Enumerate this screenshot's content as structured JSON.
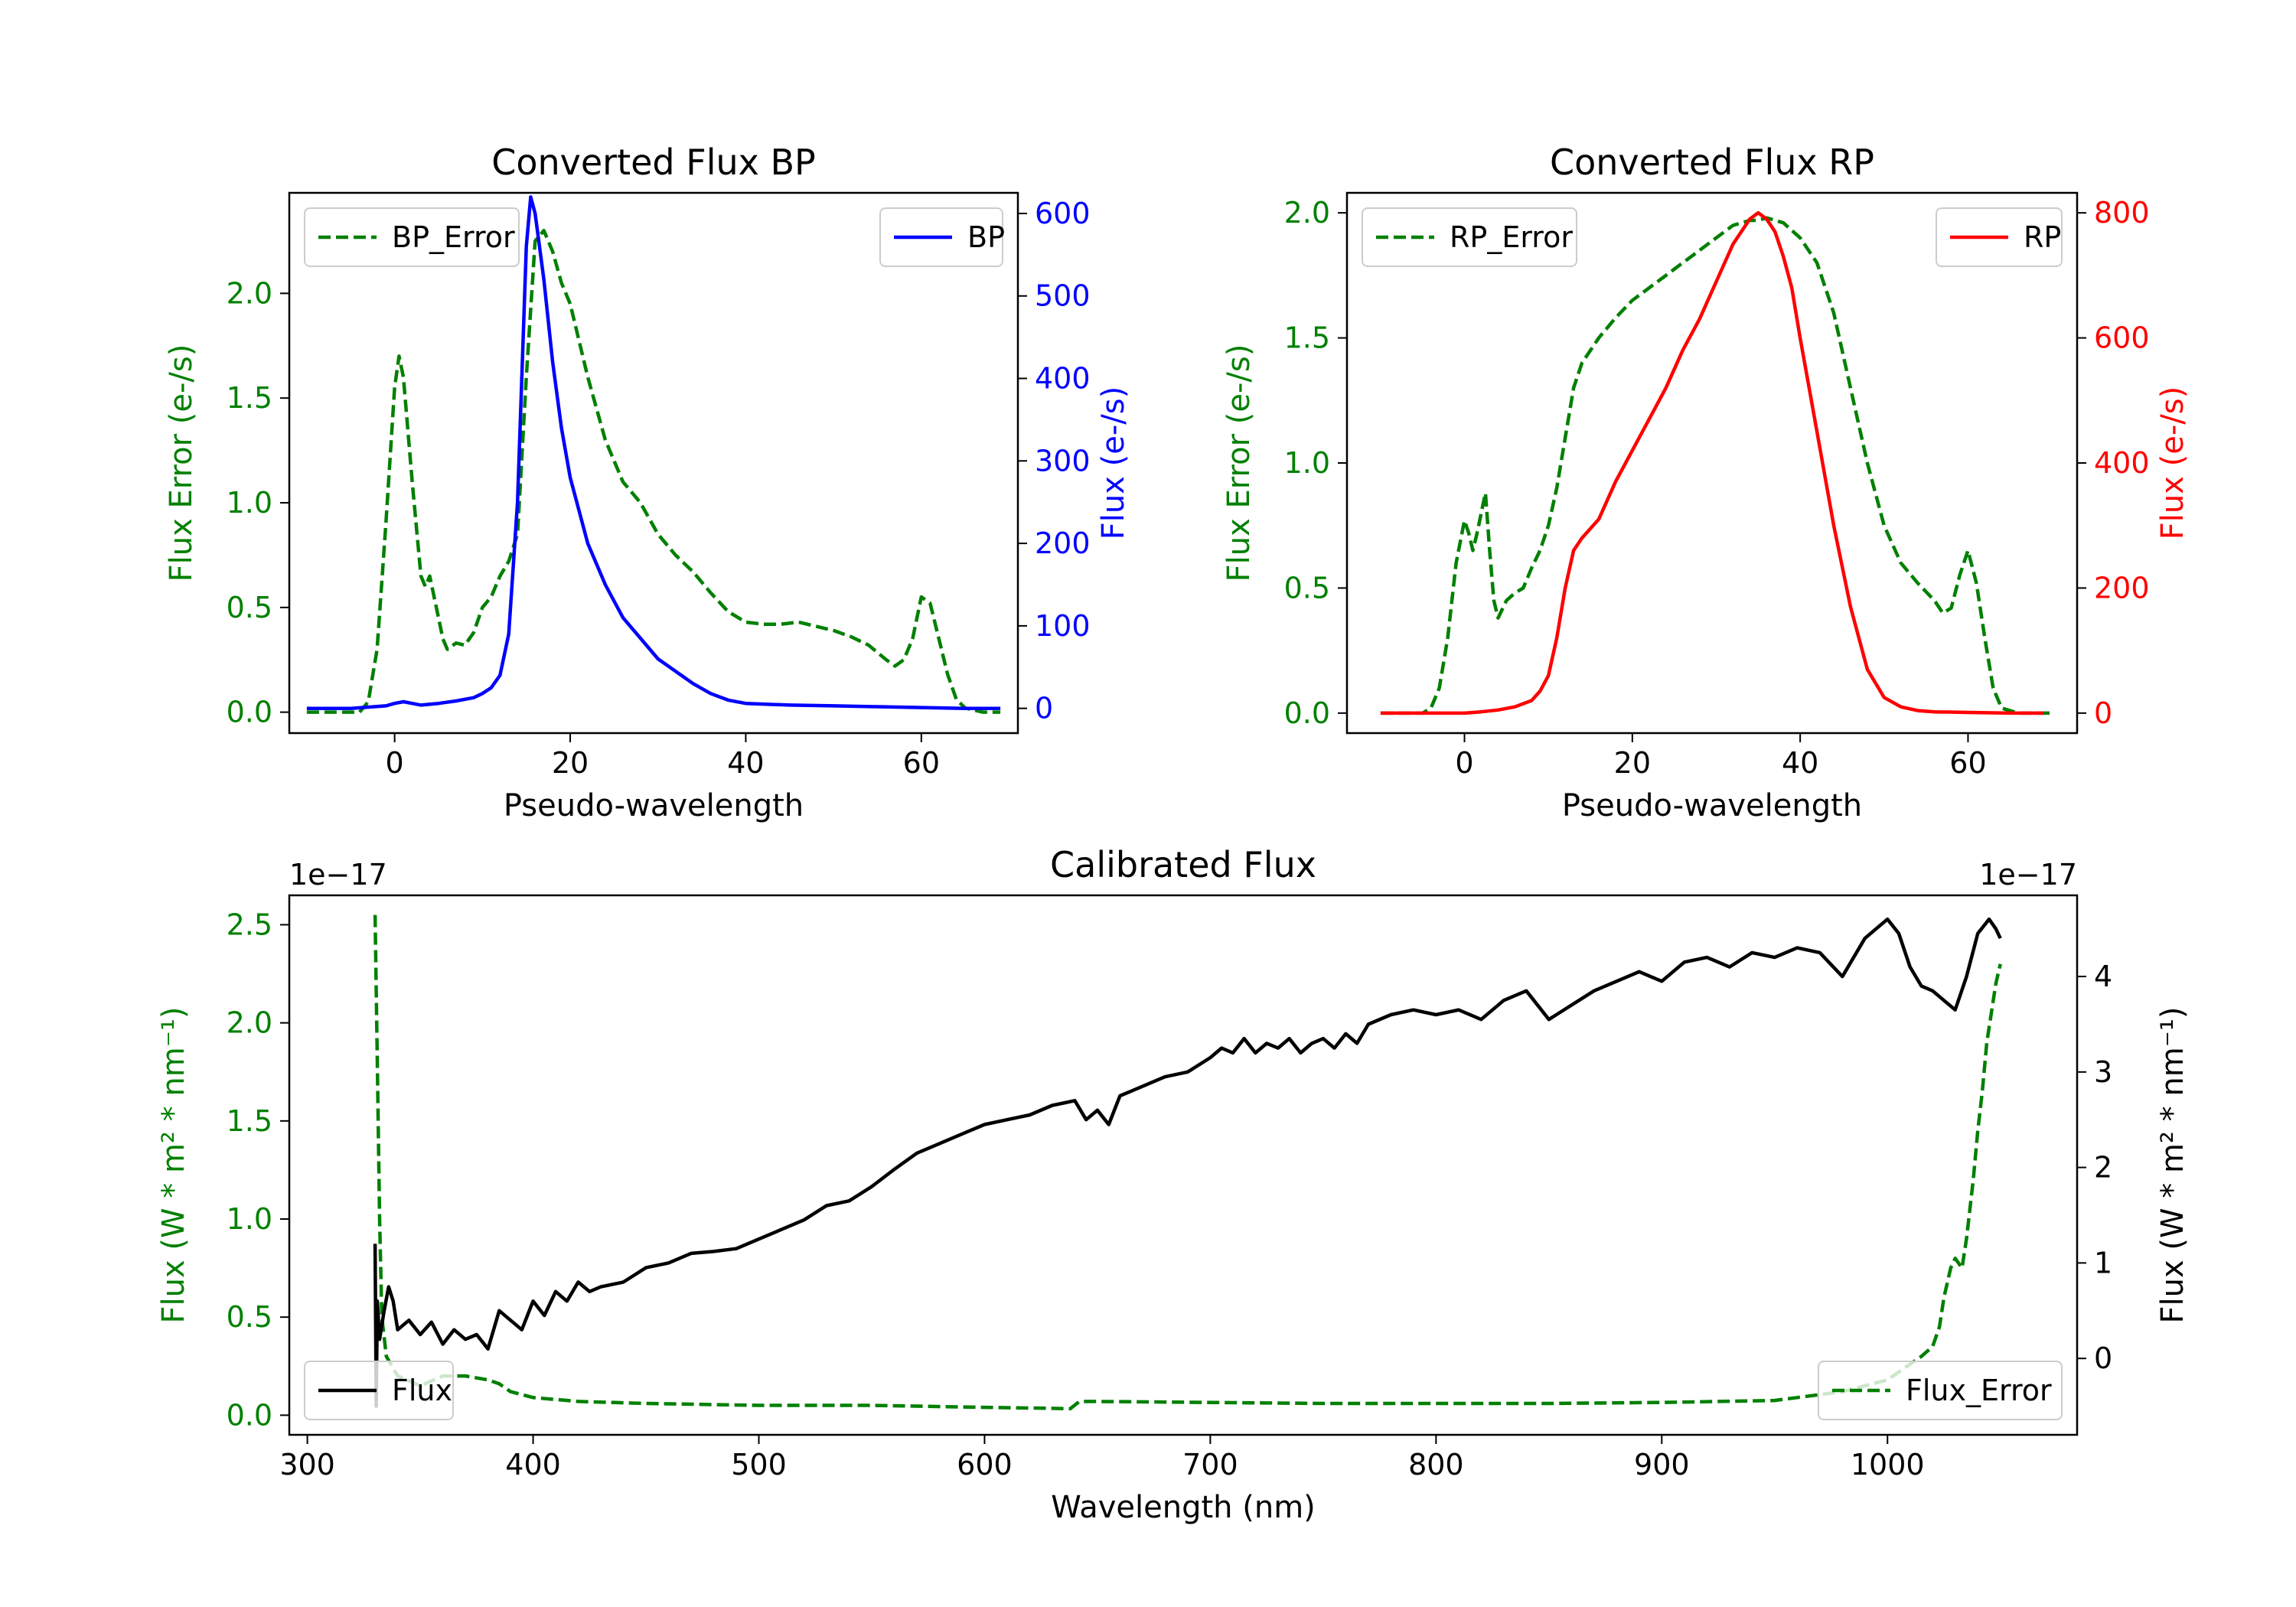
{
  "chart_data": [
    {
      "id": "bp",
      "type": "line",
      "title": "Converted Flux BP",
      "xlabel": "Pseudo-wavelength",
      "ylabel_left": "Flux Error (e-/s)",
      "ylabel_right": "Flux (e-/s)",
      "xlim": [
        -12,
        71
      ],
      "ylim_left": [
        -0.1,
        2.48
      ],
      "ylim_right": [
        -30,
        625
      ],
      "xticks": [
        0,
        20,
        40,
        60
      ],
      "yticks_left": [
        0.0,
        0.5,
        1.0,
        1.5,
        2.0
      ],
      "yticks_left_labels": [
        "0.0",
        "0.5",
        "1.0",
        "1.5",
        "2.0"
      ],
      "yticks_right": [
        0,
        100,
        200,
        300,
        400,
        500,
        600
      ],
      "left_color": "#008000",
      "right_color": "#0000ff",
      "legend_left": "BP_Error",
      "legend_right": "BP",
      "series_error": {
        "name": "BP_Error",
        "axis": "left",
        "style": "dashed",
        "color": "#008000",
        "x": [
          -10,
          -4,
          -3,
          -2,
          -1,
          0,
          0.5,
          1,
          2,
          3,
          3.5,
          4,
          5,
          5.5,
          6,
          7,
          8,
          9,
          10,
          11,
          12,
          13,
          14,
          15,
          16,
          17,
          18,
          19,
          20,
          22,
          24,
          26,
          28,
          30,
          32,
          34,
          36,
          38,
          40,
          42,
          44,
          46,
          48,
          50,
          52,
          54,
          56,
          57,
          58,
          59,
          60,
          61,
          62,
          63,
          64,
          65,
          67,
          69
        ],
        "y": [
          0.0,
          0.0,
          0.05,
          0.3,
          0.9,
          1.55,
          1.7,
          1.6,
          1.1,
          0.65,
          0.6,
          0.65,
          0.45,
          0.35,
          0.3,
          0.33,
          0.32,
          0.38,
          0.5,
          0.55,
          0.65,
          0.72,
          0.85,
          1.6,
          2.25,
          2.3,
          2.2,
          2.05,
          1.95,
          1.6,
          1.3,
          1.1,
          1.0,
          0.85,
          0.75,
          0.67,
          0.57,
          0.48,
          0.43,
          0.42,
          0.42,
          0.43,
          0.41,
          0.39,
          0.36,
          0.32,
          0.25,
          0.22,
          0.25,
          0.35,
          0.55,
          0.52,
          0.35,
          0.18,
          0.06,
          0.02,
          0.0,
          0.0
        ]
      },
      "series_flux": {
        "name": "BP",
        "axis": "right",
        "style": "solid",
        "color": "#0000ff",
        "x": [
          -10,
          -5,
          -1,
          0,
          1,
          2,
          3,
          5,
          7,
          9,
          10,
          11,
          12,
          13,
          14,
          15,
          15.5,
          16,
          17,
          18,
          19,
          20,
          22,
          24,
          26,
          28,
          30,
          32,
          34,
          36,
          38,
          40,
          45,
          50,
          55,
          60,
          65,
          69
        ],
        "y": [
          0,
          0,
          3,
          6,
          8,
          6,
          4,
          6,
          9,
          13,
          18,
          25,
          40,
          90,
          250,
          560,
          620,
          600,
          520,
          420,
          340,
          280,
          200,
          150,
          110,
          85,
          60,
          45,
          30,
          18,
          10,
          6,
          4,
          3,
          2,
          1,
          0,
          0
        ]
      }
    },
    {
      "id": "rp",
      "type": "line",
      "title": "Converted Flux RP",
      "xlabel": "Pseudo-wavelength",
      "ylabel_left": "Flux Error (e-/s)",
      "ylabel_right": "Flux (e-/s)",
      "xlim": [
        -14,
        73
      ],
      "ylim_left": [
        -0.08,
        2.08
      ],
      "ylim_right": [
        -32,
        832
      ],
      "xticks": [
        0,
        20,
        40,
        60
      ],
      "yticks_left": [
        0.0,
        0.5,
        1.0,
        1.5,
        2.0
      ],
      "yticks_left_labels": [
        "0.0",
        "0.5",
        "1.0",
        "1.5",
        "2.0"
      ],
      "yticks_right": [
        0,
        200,
        400,
        600,
        800
      ],
      "left_color": "#008000",
      "right_color": "#ff0000",
      "legend_left": "RP_Error",
      "legend_right": "RP",
      "series_error": {
        "name": "RP_Error",
        "axis": "left",
        "style": "dashed",
        "color": "#008000",
        "x": [
          -10,
          -5,
          -4,
          -3,
          -2,
          -1,
          0,
          0.5,
          1,
          1.5,
          2,
          2.5,
          3,
          3.5,
          4,
          5,
          6,
          7,
          8,
          9,
          10,
          11,
          12,
          13,
          14,
          16,
          18,
          20,
          22,
          24,
          26,
          28,
          30,
          32,
          34,
          35,
          36,
          38,
          40,
          42,
          44,
          46,
          48,
          50,
          52,
          54,
          56,
          57,
          58,
          59,
          60,
          61,
          62,
          63,
          64,
          66,
          70
        ],
        "y": [
          0.0,
          0.0,
          0.02,
          0.1,
          0.3,
          0.6,
          0.77,
          0.72,
          0.65,
          0.72,
          0.8,
          0.88,
          0.65,
          0.45,
          0.38,
          0.45,
          0.48,
          0.5,
          0.58,
          0.65,
          0.75,
          0.9,
          1.1,
          1.3,
          1.4,
          1.5,
          1.58,
          1.65,
          1.7,
          1.75,
          1.8,
          1.85,
          1.9,
          1.95,
          1.97,
          1.97,
          1.98,
          1.96,
          1.9,
          1.8,
          1.6,
          1.3,
          1.0,
          0.75,
          0.6,
          0.52,
          0.45,
          0.4,
          0.42,
          0.55,
          0.65,
          0.52,
          0.3,
          0.1,
          0.02,
          0.0,
          0.0
        ]
      },
      "series_flux": {
        "name": "RP",
        "axis": "right",
        "style": "solid",
        "color": "#ff0000",
        "x": [
          -10,
          0,
          2,
          4,
          6,
          8,
          9,
          10,
          11,
          12,
          13,
          14,
          16,
          18,
          20,
          22,
          24,
          26,
          28,
          30,
          32,
          34,
          35,
          36,
          37,
          38,
          39,
          40,
          42,
          44,
          46,
          48,
          50,
          52,
          54,
          56,
          60,
          65,
          69
        ],
        "y": [
          0,
          0,
          2,
          5,
          10,
          20,
          35,
          60,
          120,
          200,
          260,
          280,
          310,
          370,
          420,
          470,
          520,
          580,
          630,
          690,
          750,
          790,
          800,
          790,
          770,
          730,
          680,
          600,
          450,
          300,
          170,
          70,
          25,
          10,
          4,
          2,
          1,
          0,
          0
        ]
      }
    },
    {
      "id": "calibrated",
      "type": "line",
      "title": "Calibrated Flux",
      "xlabel": "Wavelength (nm)",
      "ylabel_left": "Flux (W * m² * nm⁻¹)",
      "ylabel_right": "Flux (W * m² * nm⁻¹)",
      "offset_left": "1e−17",
      "offset_right": "1e−17",
      "xlim": [
        292,
        1084
      ],
      "ylim_left": [
        -0.1,
        2.65
      ],
      "ylim_right": [
        -0.8,
        4.85
      ],
      "xticks": [
        300,
        400,
        500,
        600,
        700,
        800,
        900,
        1000
      ],
      "yticks_left": [
        0.0,
        0.5,
        1.0,
        1.5,
        2.0,
        2.5
      ],
      "yticks_left_labels": [
        "0.0",
        "0.5",
        "1.0",
        "1.5",
        "2.0",
        "2.5"
      ],
      "yticks_right": [
        0,
        1,
        2,
        3,
        4
      ],
      "left_color": "#008000",
      "right_color": "#000000",
      "legend_left": "Flux",
      "legend_right": "Flux_Error",
      "series_flux": {
        "name": "Flux",
        "axis": "right",
        "style": "solid",
        "color": "#000000",
        "x": [
          330,
          330.5,
          331,
          332,
          334,
          336,
          338,
          340,
          345,
          350,
          355,
          360,
          365,
          370,
          375,
          380,
          385,
          390,
          395,
          400,
          405,
          410,
          415,
          420,
          425,
          430,
          440,
          450,
          460,
          470,
          480,
          490,
          500,
          510,
          520,
          530,
          540,
          550,
          560,
          570,
          580,
          590,
          600,
          610,
          620,
          630,
          640,
          645,
          650,
          655,
          660,
          665,
          670,
          680,
          690,
          700,
          705,
          710,
          715,
          720,
          725,
          730,
          735,
          740,
          745,
          750,
          755,
          760,
          765,
          770,
          780,
          790,
          800,
          810,
          820,
          830,
          840,
          850,
          860,
          870,
          880,
          890,
          900,
          910,
          920,
          930,
          940,
          950,
          960,
          970,
          980,
          990,
          1000,
          1005,
          1010,
          1015,
          1020,
          1025,
          1030,
          1035,
          1040,
          1045,
          1048,
          1050
        ],
        "y": [
          1.2,
          -0.5,
          0.6,
          0.2,
          0.5,
          0.75,
          0.6,
          0.3,
          0.4,
          0.25,
          0.38,
          0.15,
          0.3,
          0.2,
          0.25,
          0.1,
          0.5,
          0.4,
          0.3,
          0.6,
          0.45,
          0.7,
          0.6,
          0.8,
          0.7,
          0.75,
          0.8,
          0.95,
          1.0,
          1.1,
          1.12,
          1.15,
          1.25,
          1.35,
          1.45,
          1.6,
          1.65,
          1.8,
          1.98,
          2.15,
          2.25,
          2.35,
          2.45,
          2.5,
          2.55,
          2.65,
          2.7,
          2.5,
          2.6,
          2.45,
          2.75,
          2.8,
          2.85,
          2.95,
          3.0,
          3.15,
          3.25,
          3.2,
          3.35,
          3.2,
          3.3,
          3.25,
          3.35,
          3.2,
          3.3,
          3.35,
          3.25,
          3.4,
          3.3,
          3.5,
          3.6,
          3.65,
          3.6,
          3.65,
          3.55,
          3.75,
          3.85,
          3.55,
          3.7,
          3.85,
          3.95,
          4.05,
          3.95,
          4.15,
          4.2,
          4.1,
          4.25,
          4.2,
          4.3,
          4.25,
          4.0,
          4.4,
          4.6,
          4.45,
          4.1,
          3.9,
          3.85,
          3.75,
          3.65,
          4.0,
          4.45,
          4.6,
          4.5,
          4.4
        ]
      },
      "series_error": {
        "name": "Flux_Error",
        "axis": "left",
        "style": "dashed",
        "color": "#008000",
        "x": [
          330,
          331,
          332,
          333,
          335,
          340,
          350,
          360,
          370,
          380,
          385,
          390,
          400,
          420,
          450,
          500,
          550,
          600,
          630,
          638,
          642,
          650,
          700,
          750,
          800,
          850,
          900,
          950,
          960,
          980,
          1000,
          1010,
          1015,
          1020,
          1023,
          1025,
          1028,
          1030,
          1033,
          1035,
          1038,
          1040,
          1042,
          1044,
          1046,
          1048,
          1050
        ],
        "y": [
          2.55,
          1.8,
          1.0,
          0.5,
          0.3,
          0.2,
          0.15,
          0.2,
          0.2,
          0.18,
          0.16,
          0.12,
          0.09,
          0.07,
          0.06,
          0.05,
          0.05,
          0.04,
          0.035,
          0.033,
          0.07,
          0.07,
          0.065,
          0.06,
          0.06,
          0.06,
          0.065,
          0.075,
          0.09,
          0.12,
          0.18,
          0.26,
          0.3,
          0.35,
          0.45,
          0.6,
          0.75,
          0.8,
          0.75,
          0.9,
          1.2,
          1.45,
          1.65,
          1.9,
          2.05,
          2.2,
          2.3
        ]
      }
    }
  ]
}
